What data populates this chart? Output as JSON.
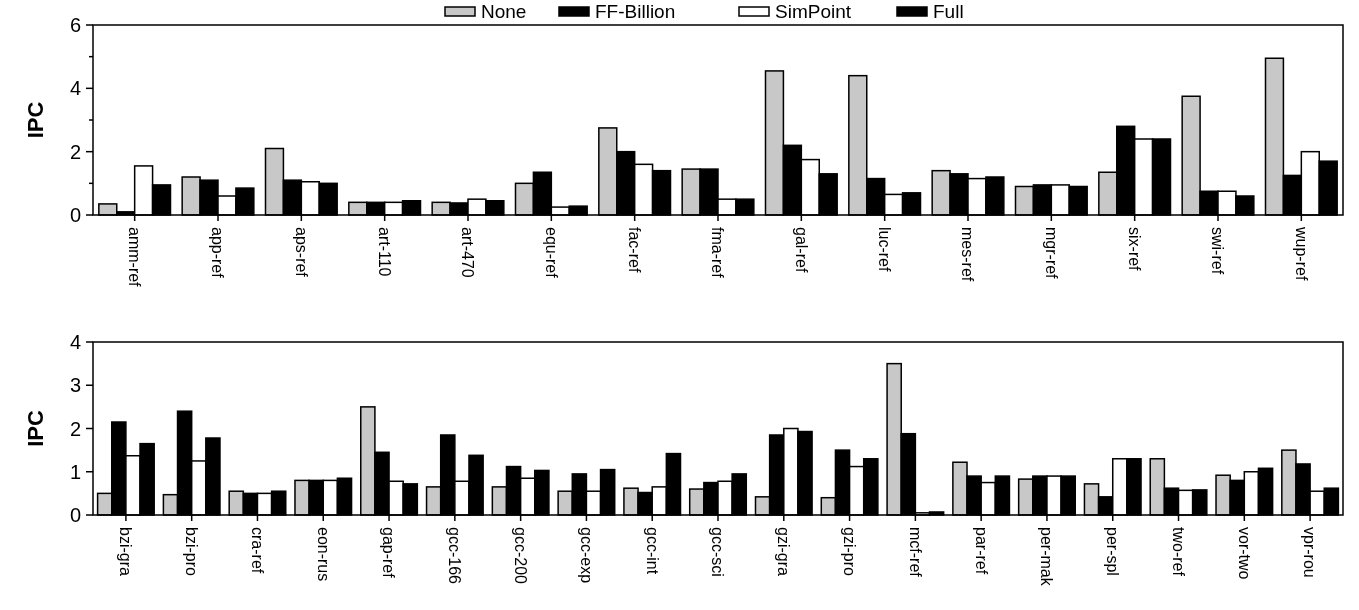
{
  "chart_data": [
    {
      "type": "bar",
      "ylabel": "IPC",
      "legend": "top",
      "grid": false,
      "ylim": [
        0,
        6
      ],
      "yticks": [
        0,
        {
          "value": 1,
          "label": null
        },
        2,
        {
          "value": 3,
          "label": null
        },
        4,
        {
          "value": 5,
          "label": null
        },
        6
      ],
      "categories": [
        "amm-ref",
        "app-ref",
        "aps-ref",
        "art-110",
        "art-470",
        "equ-ref",
        "fac-ref",
        "fma-ref",
        "gal-ref",
        "luc-ref",
        "mes-ref",
        "mgr-ref",
        "six-ref",
        "swi-ref",
        "wup-ref"
      ],
      "series": [
        {
          "name": "None",
          "color": "#c8c8c8",
          "values": [
            0.35,
            1.2,
            2.1,
            0.4,
            0.4,
            1.0,
            2.75,
            1.45,
            4.55,
            4.4,
            1.4,
            0.9,
            1.35,
            3.75,
            4.95
          ]
        },
        {
          "name": "FF-Billion",
          "color": "#000000",
          "values": [
            0.1,
            1.1,
            1.1,
            0.4,
            0.38,
            1.35,
            2.0,
            1.45,
            2.2,
            1.15,
            1.3,
            0.95,
            2.8,
            0.75,
            1.25
          ]
        },
        {
          "name": "SimPoint",
          "color": "#ffffff",
          "values": [
            1.55,
            0.6,
            1.05,
            0.4,
            0.5,
            0.25,
            1.6,
            0.5,
            1.75,
            0.65,
            1.15,
            0.95,
            2.4,
            0.75,
            2.0
          ]
        },
        {
          "name": "Full",
          "color": "#000000",
          "values": [
            0.95,
            0.85,
            1.0,
            0.45,
            0.45,
            0.28,
            1.4,
            0.5,
            1.3,
            0.7,
            1.2,
            0.9,
            2.4,
            0.6,
            1.7
          ]
        }
      ]
    },
    {
      "type": "bar",
      "ylabel": "IPC",
      "grid": false,
      "ylim": [
        0,
        4
      ],
      "yticks": [
        0,
        1,
        2,
        3,
        4
      ],
      "categories": [
        "bzi-gra",
        "bzi-pro",
        "cra-ref",
        "eon-rus",
        "gap-ref",
        "gcc-166",
        "gcc-200",
        "gcc-exp",
        "gcc-int",
        "gcc-sci",
        "gzi-gra",
        "gzi-pro",
        "mcf-ref",
        "par-ref",
        "per-mak",
        "per-spl",
        "two-ref",
        "vor-two",
        "vpr-rou"
      ],
      "series": [
        {
          "color": "#c8c8c8",
          "values": [
            0.5,
            0.47,
            0.55,
            0.8,
            2.5,
            0.65,
            0.65,
            0.55,
            0.62,
            0.6,
            0.42,
            0.4,
            3.5,
            1.22,
            0.83,
            0.72,
            1.3,
            0.92,
            1.5
          ]
        },
        {
          "color": "#000000",
          "values": [
            2.15,
            2.4,
            0.5,
            0.8,
            1.45,
            1.85,
            1.12,
            0.95,
            0.52,
            0.75,
            1.85,
            1.5,
            1.88,
            0.9,
            0.9,
            0.42,
            0.62,
            0.8,
            1.18
          ]
        },
        {
          "color": "#ffffff",
          "values": [
            1.37,
            1.25,
            0.5,
            0.8,
            0.78,
            0.78,
            0.85,
            0.55,
            0.65,
            0.78,
            2.0,
            1.12,
            0.05,
            0.75,
            0.9,
            1.3,
            0.57,
            1.0,
            0.55
          ]
        },
        {
          "color": "#000000",
          "values": [
            1.65,
            1.78,
            0.55,
            0.85,
            0.72,
            1.38,
            1.03,
            1.05,
            1.42,
            0.95,
            1.93,
            1.3,
            0.07,
            0.9,
            0.9,
            1.3,
            0.58,
            1.08,
            0.62
          ]
        }
      ]
    }
  ]
}
